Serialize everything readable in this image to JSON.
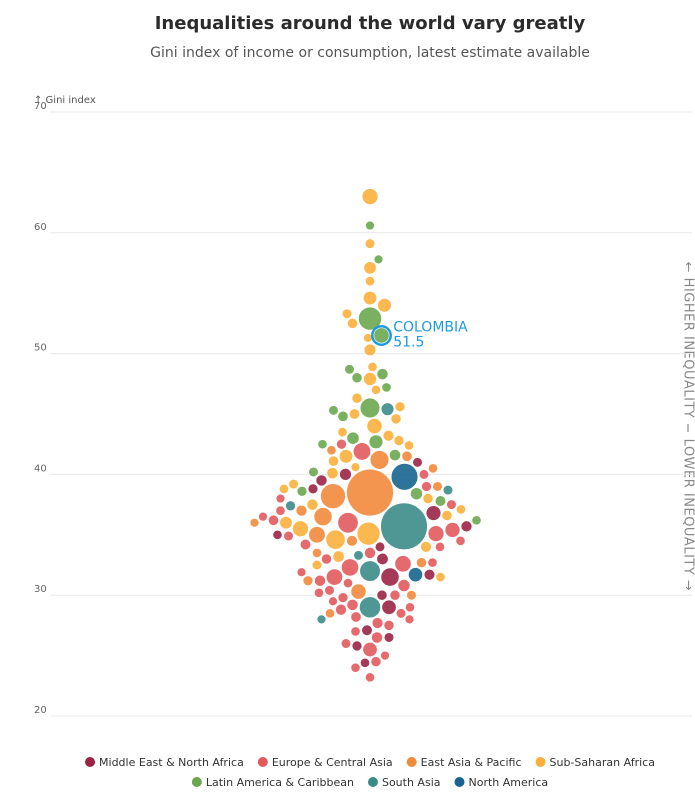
{
  "chart_data": {
    "type": "beeswarm",
    "title": "Inequalities around the world vary greatly",
    "subtitle": "Gini index of income or consumption, latest estimate available",
    "y_label": "↑ Gini index",
    "ylim": [
      20,
      70
    ],
    "yticks": [
      20,
      30,
      40,
      50,
      60,
      70
    ],
    "grid": true,
    "side_labels": [
      "← HIGHER INEQUALITY",
      "LOWER INEQUALITY →"
    ],
    "annotation": {
      "label": "COLOMBIA",
      "value": 51.5,
      "color": "#1f9ae0"
    },
    "series": [
      {
        "name": "Middle East & North Africa",
        "color": "#9b2346",
        "values": [
          24.4,
          25.8,
          26.5,
          27.1,
          29,
          30,
          31.5,
          31.7,
          33,
          34,
          35,
          35.7,
          36.8,
          38.8,
          39.5,
          40,
          41
        ],
        "sizes": [
          2,
          4,
          3,
          7,
          40,
          5,
          100,
          8,
          12,
          3,
          2,
          9,
          45,
          4,
          10,
          15,
          3
        ]
      },
      {
        "name": "Europe & Central Asia",
        "color": "#e25a5e",
        "values": [
          23.2,
          24,
          24.5,
          25,
          25.5,
          26,
          26.5,
          27,
          27.5,
          27.7,
          28,
          28.2,
          28.5,
          28.8,
          29,
          29.2,
          29.5,
          29.8,
          30,
          30.2,
          30.4,
          30.8,
          31,
          31.2,
          31.5,
          31.9,
          32.3,
          32.6,
          32.7,
          33,
          33.5,
          34,
          34.2,
          34.5,
          34.9,
          35.1,
          35.4,
          36,
          36.2,
          36.5,
          37,
          37.5,
          38,
          39,
          40,
          41.9,
          42.5
        ],
        "sizes": [
          2,
          2,
          5,
          1,
          40,
          3,
          10,
          2,
          5,
          9,
          1,
          6,
          3,
          9,
          2,
          10,
          1,
          4,
          5,
          2,
          3,
          17,
          2,
          10,
          68,
          1,
          83,
          67,
          2,
          5,
          10,
          2,
          7,
          2,
          3,
          60,
          47,
          145,
          6,
          1,
          2,
          3,
          1,
          4,
          3,
          85,
          4
        ]
      },
      {
        "name": "East Asia & Pacific",
        "color": "#f28a3c",
        "values": [
          38.5,
          38.2,
          42,
          41.2,
          36.5,
          35,
          32.7,
          30.3,
          30,
          31.2,
          33.5,
          34.5,
          37,
          39,
          40.5,
          41.5,
          36,
          28.5
        ],
        "sizes": [
          1400,
          270,
          2,
          110,
          98,
          70,
          5,
          50,
          3,
          4,
          2,
          8,
          9,
          3,
          2,
          6,
          1,
          2
        ]
      },
      {
        "name": "Sub-Saharan Africa",
        "color": "#fbb03b",
        "values": [
          63,
          59.1,
          57.1,
          56,
          54.6,
          54,
          53.3,
          52.5,
          51.3,
          50.3,
          48.9,
          47.9,
          47,
          46.3,
          45.6,
          45,
          44.6,
          44,
          43.5,
          43.2,
          42.8,
          42.4,
          41.5,
          41.1,
          40.6,
          40.1,
          39.2,
          38.8,
          38,
          37.5,
          37.1,
          36.6,
          36,
          35.5,
          35.1,
          34.6,
          34,
          33.2,
          32.5,
          31.5
        ],
        "sizes": [
          60,
          3,
          19,
          2,
          30,
          32,
          3,
          5,
          1,
          14,
          2,
          25,
          2,
          5,
          4,
          6,
          5,
          50,
          2,
          8,
          4,
          2,
          30,
          6,
          1,
          11,
          3,
          2,
          5,
          10,
          2,
          5,
          20,
          60,
          210,
          120,
          8,
          12,
          3,
          2
        ]
      },
      {
        "name": "Latin America & Caribbean",
        "color": "#6aa84f",
        "values": [
          60.6,
          57.8,
          52.9,
          51.5,
          48.7,
          48.3,
          48,
          47.2,
          45.5,
          45.3,
          44.8,
          43,
          42.7,
          42.5,
          41.6,
          40.2,
          38.6,
          38.4,
          37.8,
          36.2
        ],
        "sizes": [
          1,
          1,
          215,
          51,
          3,
          10,
          5,
          2,
          130,
          3,
          6,
          18,
          33,
          2,
          11,
          3,
          4,
          17,
          7,
          2
        ]
      },
      {
        "name": "South Asia",
        "color": "#3b8c88",
        "values": [
          35.7,
          45.4,
          32,
          29,
          37.4,
          33.3,
          28,
          38.7
        ],
        "sizes": [
          1400,
          22,
          150,
          165,
          4,
          3,
          1,
          3
        ]
      },
      {
        "name": "North America",
        "color": "#17648f",
        "values": [
          39.8,
          31.7
        ],
        "sizes": [
          330,
          38
        ]
      }
    ]
  }
}
